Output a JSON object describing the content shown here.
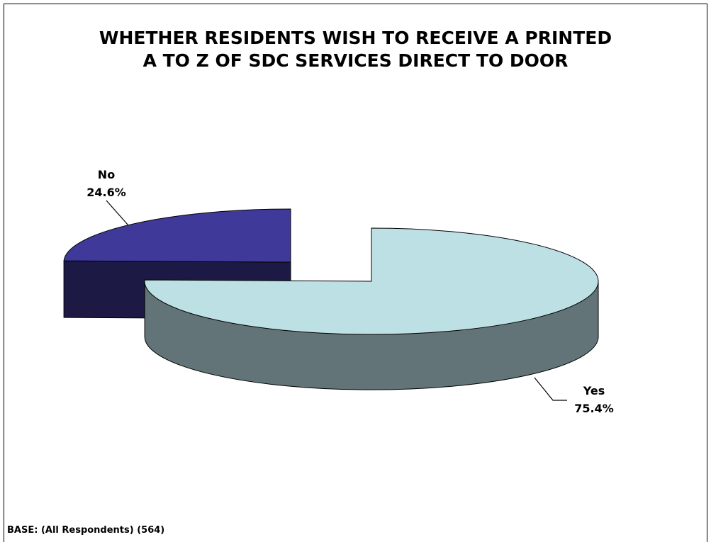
{
  "chart_data": {
    "type": "pie",
    "title": [
      "WHETHER RESIDENTS WISH TO RECEIVE A PRINTED",
      "A TO Z OF SDC SERVICES DIRECT TO DOOR"
    ],
    "slices": [
      {
        "name": "No",
        "value": 24.6,
        "label": "24.6%",
        "color": "#3F3A9A"
      },
      {
        "name": "Yes",
        "value": 75.4,
        "label": "75.4%",
        "color": "#BDE0E4"
      }
    ],
    "legend": "none",
    "three_d": true,
    "exploded": "No"
  },
  "footer": "BASE: (All Respondents) (564)"
}
